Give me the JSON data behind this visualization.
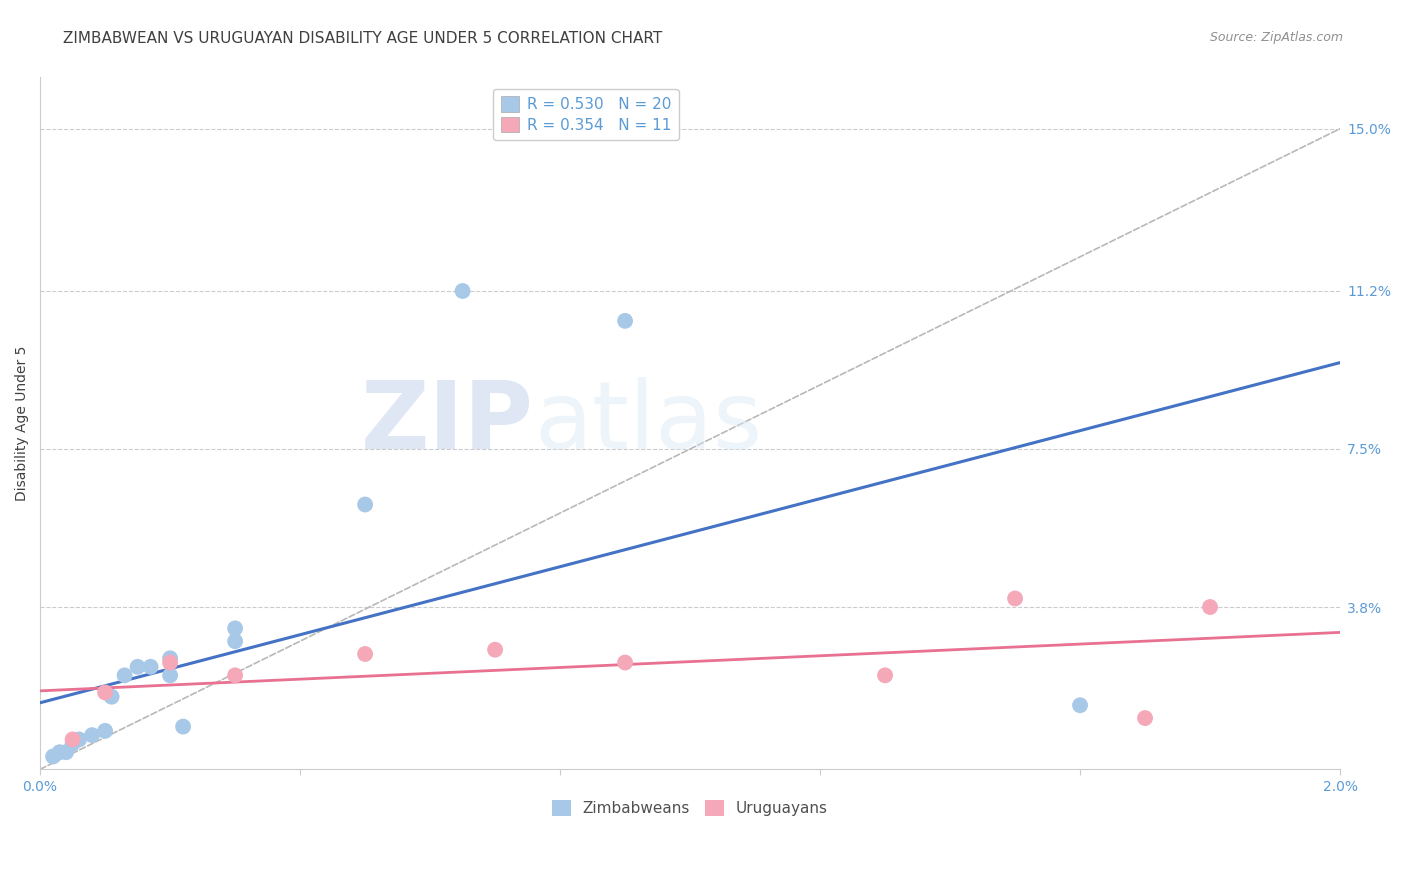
{
  "title": "ZIMBABWEAN VS URUGUAYAN DISABILITY AGE UNDER 5 CORRELATION CHART",
  "source": "Source: ZipAtlas.com",
  "ylabel_label": "Disability Age Under 5",
  "xmin": 0.0,
  "xmax": 0.02,
  "ymin": 0.0,
  "ymax": 0.162,
  "yticks": [
    0.038,
    0.075,
    0.112,
    0.15
  ],
  "ytick_labels": [
    "3.8%",
    "7.5%",
    "11.2%",
    "15.0%"
  ],
  "xticks": [
    0.0,
    0.004,
    0.008,
    0.012,
    0.016,
    0.02
  ],
  "xtick_labels": [
    "0.0%",
    "",
    "",
    "",
    "",
    "2.0%"
  ],
  "zim_R": 0.53,
  "zim_N": 20,
  "uru_R": 0.354,
  "uru_N": 11,
  "zim_color": "#a8c8e8",
  "uru_color": "#f4a8b8",
  "zim_line_color": "#4472c4",
  "uru_line_color": "#e87090",
  "ref_line_color": "#b8b8b8",
  "grid_color": "#cccccc",
  "axis_color": "#5b9bd5",
  "text_color": "#404040",
  "background_color": "#ffffff",
  "zim_x": [
    0.0002,
    0.0003,
    0.0004,
    0.0005,
    0.0006,
    0.0008,
    0.001,
    0.0011,
    0.0013,
    0.0015,
    0.0017,
    0.002,
    0.002,
    0.0022,
    0.003,
    0.003,
    0.005,
    0.0065,
    0.009,
    0.016
  ],
  "zim_y": [
    0.003,
    0.004,
    0.004,
    0.006,
    0.007,
    0.008,
    0.009,
    0.017,
    0.022,
    0.024,
    0.024,
    0.022,
    0.026,
    0.01,
    0.03,
    0.033,
    0.062,
    0.112,
    0.105,
    0.015
  ],
  "uru_x": [
    0.0005,
    0.001,
    0.002,
    0.003,
    0.005,
    0.007,
    0.009,
    0.013,
    0.015,
    0.017,
    0.018
  ],
  "uru_y": [
    0.007,
    0.018,
    0.025,
    0.022,
    0.027,
    0.028,
    0.025,
    0.022,
    0.04,
    0.012,
    0.038
  ],
  "watermark_zip": "ZIP",
  "watermark_atlas": "atlas",
  "title_fontsize": 11,
  "source_fontsize": 9,
  "label_fontsize": 10,
  "tick_fontsize": 10,
  "legend_fontsize": 11
}
